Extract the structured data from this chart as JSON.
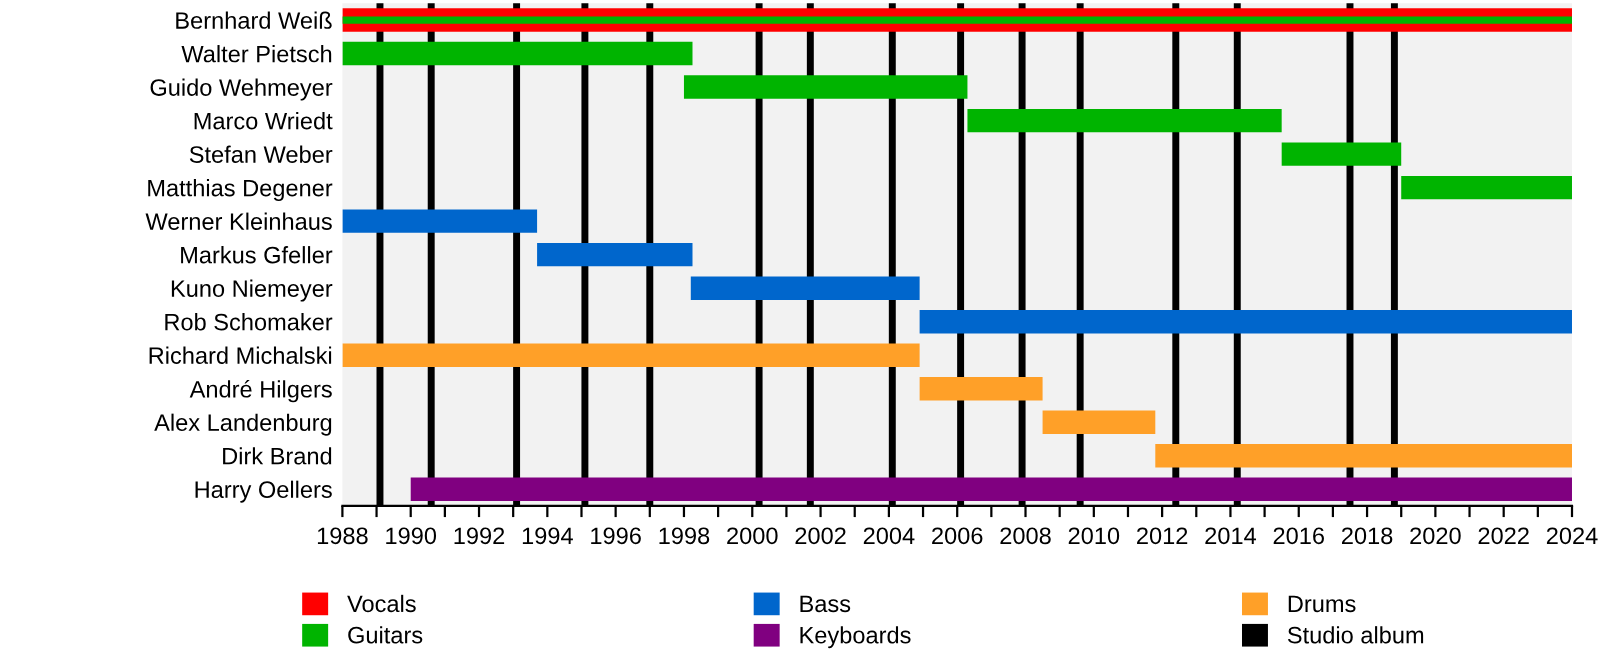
{
  "chart_data": {
    "type": "bar",
    "orientation": "horizontal",
    "categories": [
      "Bernhard Weiß",
      "Walter Pietsch",
      "Guido Wehmeyer",
      "Marco Wriedt",
      "Stefan Weber",
      "Matthias Degener",
      "Werner Kleinhaus",
      "Markus Gfeller",
      "Kuno Niemeyer",
      "Rob Schomaker",
      "Richard Michalski",
      "André Hilgers",
      "Alex Landenburg",
      "Dirk Brand",
      "Harry Oellers"
    ],
    "series": [
      {
        "name": "Vocals",
        "color": "#ff0000",
        "base": [
          1988,
          null,
          null,
          null,
          null,
          null,
          null,
          null,
          null,
          null,
          null,
          null,
          null,
          null,
          null
        ],
        "values": [
          36,
          null,
          null,
          null,
          null,
          null,
          null,
          null,
          null,
          null,
          null,
          null,
          null,
          null,
          null
        ]
      },
      {
        "name": "Guitars",
        "color": "#00b400",
        "base": [
          1988,
          1988,
          1998.0,
          2006.3,
          2015.5,
          2019.0,
          null,
          null,
          null,
          null,
          null,
          null,
          null,
          null,
          null
        ],
        "values": [
          36,
          10.25,
          8.3,
          9.2,
          3.5,
          5.0,
          null,
          null,
          null,
          null,
          null,
          null,
          null,
          null,
          null
        ]
      },
      {
        "name": "Bass",
        "color": "#0066cc",
        "base": [
          null,
          null,
          null,
          null,
          null,
          null,
          1988,
          1993.7,
          1998.2,
          2004.9,
          null,
          null,
          null,
          null,
          null
        ],
        "values": [
          null,
          null,
          null,
          null,
          null,
          null,
          5.7,
          4.55,
          6.7,
          19.1,
          null,
          null,
          null,
          null,
          null
        ]
      },
      {
        "name": "Keyboards",
        "color": "#800080",
        "base": [
          null,
          null,
          null,
          null,
          null,
          null,
          null,
          null,
          null,
          null,
          null,
          null,
          null,
          null,
          1990.0
        ],
        "values": [
          null,
          null,
          null,
          null,
          null,
          null,
          null,
          null,
          null,
          null,
          null,
          null,
          null,
          null,
          34.0
        ]
      },
      {
        "name": "Drums",
        "color": "#ffa028",
        "base": [
          null,
          null,
          null,
          null,
          null,
          null,
          null,
          null,
          null,
          null,
          1988,
          2004.9,
          2008.5,
          2011.8,
          null
        ],
        "values": [
          null,
          null,
          null,
          null,
          null,
          null,
          null,
          null,
          null,
          null,
          16.9,
          3.6,
          3.3,
          12.2,
          null
        ]
      }
    ],
    "ref_lines": [
      {
        "axis": "x",
        "value": 1989.1,
        "label": "Studio album",
        "color": "#000000"
      },
      {
        "axis": "x",
        "value": 1990.6,
        "color": "#000000"
      },
      {
        "axis": "x",
        "value": 1993.1,
        "color": "#000000"
      },
      {
        "axis": "x",
        "value": 1995.1,
        "color": "#000000"
      },
      {
        "axis": "x",
        "value": 1997.0,
        "color": "#000000"
      },
      {
        "axis": "x",
        "value": 2000.2,
        "color": "#000000"
      },
      {
        "axis": "x",
        "value": 2001.7,
        "color": "#000000"
      },
      {
        "axis": "x",
        "value": 2004.1,
        "color": "#000000"
      },
      {
        "axis": "x",
        "value": 2006.1,
        "color": "#000000"
      },
      {
        "axis": "x",
        "value": 2007.9,
        "color": "#000000"
      },
      {
        "axis": "x",
        "value": 2009.6,
        "color": "#000000"
      },
      {
        "axis": "x",
        "value": 2012.4,
        "color": "#000000"
      },
      {
        "axis": "x",
        "value": 2014.2,
        "color": "#000000"
      },
      {
        "axis": "x",
        "value": 2017.5,
        "color": "#000000"
      },
      {
        "axis": "x",
        "value": 2018.8,
        "color": "#000000"
      }
    ],
    "xlim": [
      1988,
      2024
    ],
    "xticks": [
      1988,
      {
        "value": 1989,
        "label": null
      },
      1990,
      {
        "value": 1991,
        "label": null
      },
      1992,
      {
        "value": 1993,
        "label": null
      },
      1994,
      {
        "value": 1995,
        "label": null
      },
      1996,
      {
        "value": 1997,
        "label": null
      },
      1998,
      {
        "value": 1999,
        "label": null
      },
      2000,
      {
        "value": 2001,
        "label": null
      },
      2002,
      {
        "value": 2003,
        "label": null
      },
      2004,
      {
        "value": 2005,
        "label": null
      },
      2006,
      {
        "value": 2007,
        "label": null
      },
      2008,
      {
        "value": 2009,
        "label": null
      },
      2010,
      {
        "value": 2011,
        "label": null
      },
      2012,
      {
        "value": 2013,
        "label": null
      },
      2014,
      {
        "value": 2015,
        "label": null
      },
      2016,
      {
        "value": 2017,
        "label": null
      },
      2018,
      {
        "value": 2019,
        "label": null
      },
      2020,
      {
        "value": 2021,
        "label": null
      },
      2022,
      {
        "value": 2023,
        "label": null
      },
      2024
    ],
    "grid": false,
    "legend": "bottom"
  }
}
